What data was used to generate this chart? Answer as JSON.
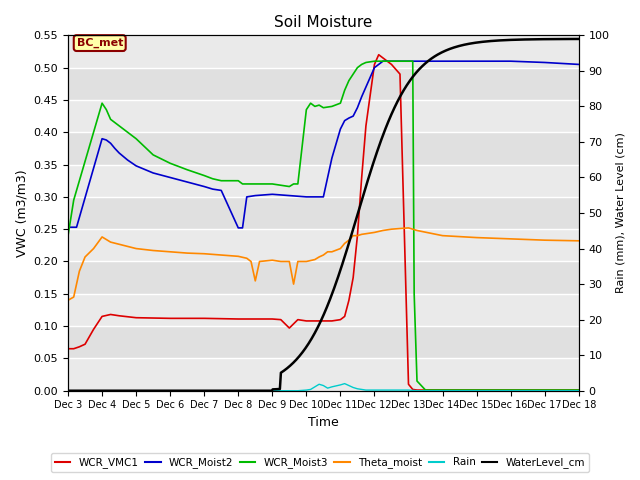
{
  "title": "Soil Moisture",
  "xlabel": "Time",
  "ylabel_left": "VWC (m3/m3)",
  "ylabel_right": "Rain (mm), Water Level (cm)",
  "ylim_left": [
    0.0,
    0.55
  ],
  "ylim_right": [
    0,
    100
  ],
  "yticks_left": [
    0.0,
    0.05,
    0.1,
    0.15,
    0.2,
    0.25,
    0.3,
    0.35,
    0.4,
    0.45,
    0.5,
    0.55
  ],
  "yticks_right": [
    0,
    10,
    20,
    30,
    40,
    50,
    60,
    70,
    80,
    90,
    100
  ],
  "bg_color": "#e0e0e0",
  "annotation_text": "BC_met",
  "annotation_color": "#8B0000",
  "annotation_bg": "#FFFFAA",
  "line_colors": {
    "WCR_VMC1": "#dd0000",
    "WCR_Moist2": "#0000cc",
    "WCR_Moist3": "#00bb00",
    "Theta_moist": "#ff8800",
    "Rain": "#00cccc",
    "WaterLevel_cm": "#000000"
  },
  "legend_labels": [
    "WCR_VMC1",
    "WCR_Moist2",
    "WCR_Moist3",
    "Theta_moist",
    "Rain",
    "WaterLevel_cm"
  ]
}
